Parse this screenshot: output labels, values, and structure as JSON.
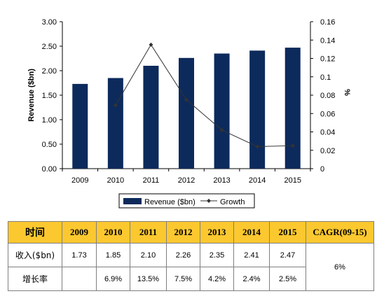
{
  "chart_data": {
    "type": "bar+line",
    "categories": [
      "2009",
      "2010",
      "2011",
      "2012",
      "2013",
      "2014",
      "2015"
    ],
    "series": [
      {
        "name": "Revenue ($bn)",
        "type": "bar",
        "axis": "left",
        "values": [
          1.73,
          1.85,
          2.1,
          2.26,
          2.35,
          2.41,
          2.47
        ],
        "color": "#0d2a5c"
      },
      {
        "name": "Growth",
        "type": "line",
        "axis": "right",
        "values": [
          null,
          0.069,
          0.135,
          0.075,
          0.042,
          0.024,
          0.025
        ],
        "color": "#333333"
      }
    ],
    "ylabel": "Revenue ($bn)",
    "y2label": "%",
    "ylim": [
      0,
      3.0
    ],
    "y2lim": [
      0,
      0.16
    ],
    "yticks": [
      "0.00",
      "0.50",
      "1.00",
      "1.50",
      "2.00",
      "2.50",
      "3.00"
    ],
    "y2ticks": [
      "0",
      "0.02",
      "0.04",
      "0.06",
      "0.08",
      "0.1",
      "0.12",
      "0.14",
      "0.16"
    ],
    "legend_position": "bottom",
    "grid": false
  },
  "table": {
    "header": [
      "时间",
      "2009",
      "2010",
      "2011",
      "2012",
      "2013",
      "2014",
      "2015",
      "CAGR(09-15)"
    ],
    "rows": [
      {
        "label": "收入($bn)",
        "cells": [
          "1.73",
          "1.85",
          "2.10",
          "2.26",
          "2.35",
          "2.41",
          "2.47"
        ]
      },
      {
        "label": "增长率",
        "cells": [
          "",
          "6.9%",
          "13.5%",
          "7.5%",
          "4.2%",
          "2.4%",
          "2.5%"
        ]
      }
    ],
    "cagr": "6%",
    "header_color": "#fcc82f"
  }
}
